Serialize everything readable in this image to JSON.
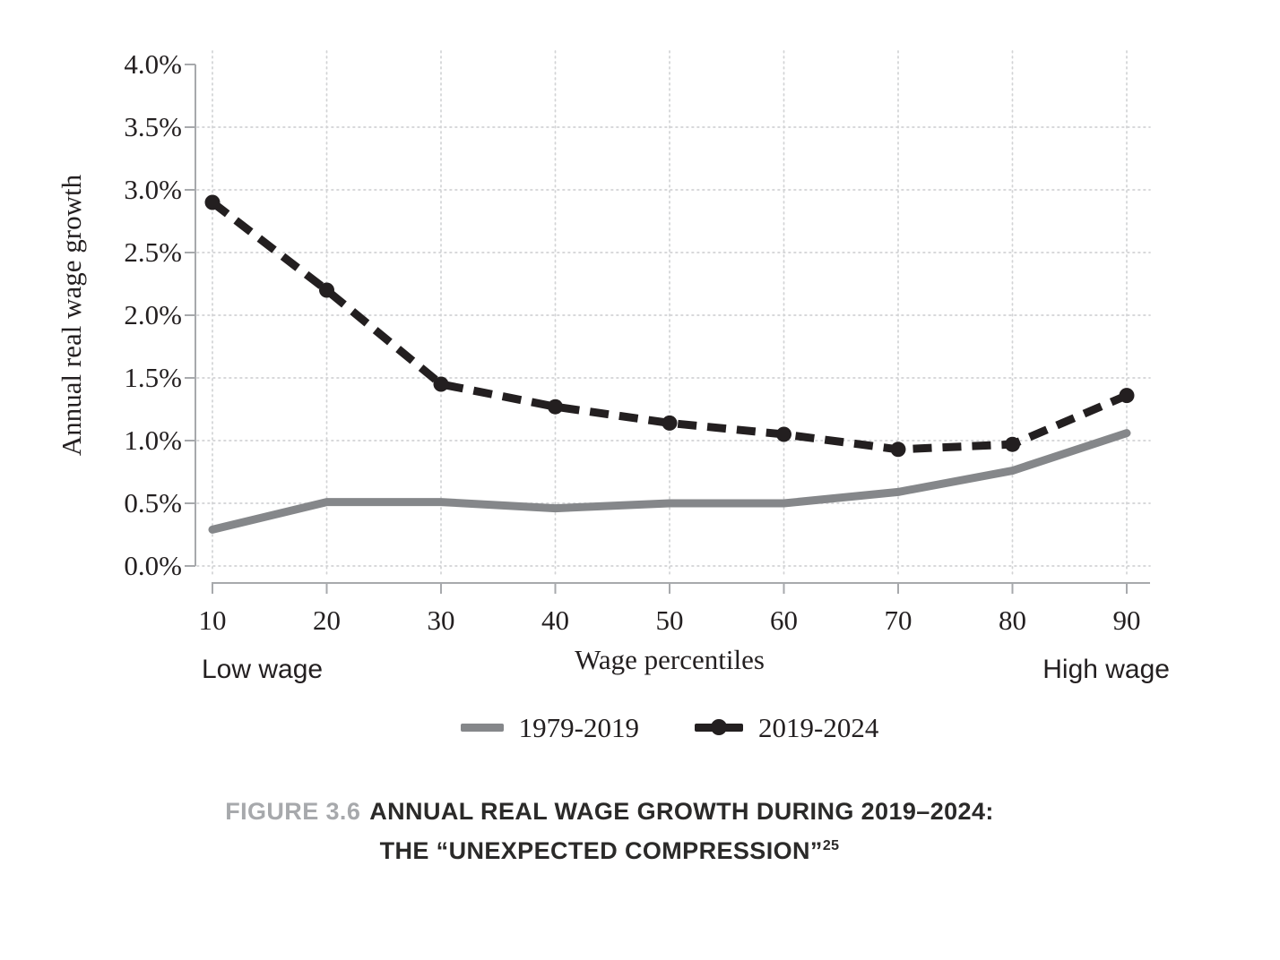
{
  "chart_data": {
    "type": "line",
    "x": [
      10,
      20,
      30,
      40,
      50,
      60,
      70,
      80,
      90
    ],
    "xtick_labels": [
      "10",
      "20",
      "30",
      "40",
      "50",
      "60",
      "70",
      "80",
      "90"
    ],
    "yticks": [
      0,
      0.5,
      1,
      1.5,
      2,
      2.5,
      3,
      3.5,
      4
    ],
    "ytick_labels": [
      "0.0%",
      "0.5%",
      "1.0%",
      "1.5%",
      "2.0%",
      "2.5%",
      "3.0%",
      "3.5%",
      "4.0%"
    ],
    "ylim": [
      0,
      4
    ],
    "xlabel": "Wage percentiles",
    "ylabel": "Annual real wage growth",
    "annotations": {
      "left_label": "Low wage",
      "right_label": "High wage"
    },
    "grid": true,
    "legend_position": "bottom-center",
    "series": [
      {
        "name": "1979-2019",
        "style": "solid",
        "marker": "none",
        "color": "#85878a",
        "values": [
          0.29,
          0.51,
          0.51,
          0.46,
          0.5,
          0.5,
          0.59,
          0.76,
          1.06
        ]
      },
      {
        "name": "2019-2024",
        "style": "dashed",
        "marker": "circle",
        "color": "#231f20",
        "values": [
          2.9,
          2.2,
          1.45,
          1.27,
          1.14,
          1.05,
          0.93,
          0.97,
          1.36
        ]
      }
    ],
    "colors": {
      "gridline": "#d2d3d5",
      "axis": "#a7a9ac",
      "tick_text": "#231f20"
    }
  },
  "caption": {
    "label": "FIGURE 3.6",
    "title_line1": "ANNUAL REAL WAGE GROWTH DURING 2019–2024:",
    "title_line2": "THE “UNEXPECTED COMPRESSION”",
    "footnote_ref": "25",
    "label_color": "#a7a9ac",
    "title_color": "#2b2a29"
  }
}
